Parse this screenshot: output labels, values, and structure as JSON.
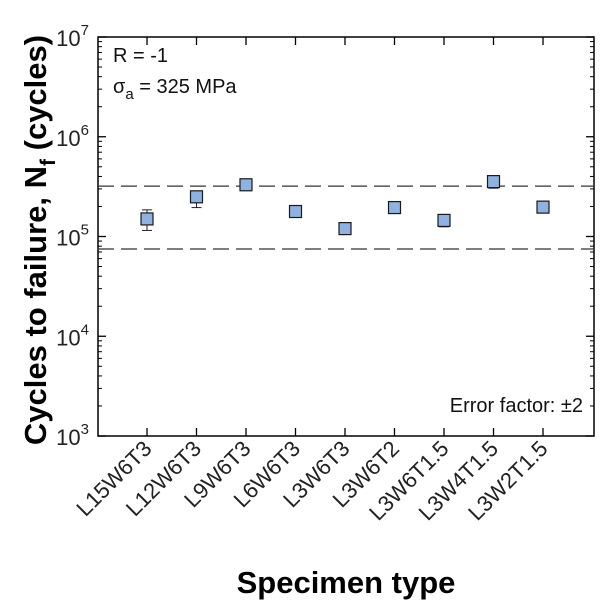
{
  "chart_data": {
    "type": "scatter",
    "ylabel": "Cycles to failure, N",
    "ylabel_sub": "f",
    "ylabel_unit": "(cycles)",
    "xlabel": "Specimen type",
    "yscale": "log",
    "ylim": [
      1000,
      10000000
    ],
    "ytick_labels": [
      {
        "base": "10",
        "exp": "3"
      },
      {
        "base": "10",
        "exp": "4"
      },
      {
        "base": "10",
        "exp": "5"
      },
      {
        "base": "10",
        "exp": "6"
      },
      {
        "base": "10",
        "exp": "7"
      }
    ],
    "categories": [
      "L15W6T3",
      "L12W6T3",
      "L9W6T3",
      "L6W6T3",
      "L3W6T3",
      "L3W6T2",
      "L3W6T1.5",
      "L3W4T1.5",
      "L3W2T1.5"
    ],
    "values": [
      150000,
      250000,
      330000,
      178000,
      120000,
      195000,
      145000,
      355000,
      197000
    ],
    "err_low": [
      115000,
      195000,
      290000,
      165000,
      113000,
      170000,
      125000,
      305000,
      175000
    ],
    "err_high": [
      185000,
      285000,
      340000,
      190000,
      127000,
      215000,
      160000,
      385000,
      205000
    ],
    "reference_lines": [
      320000,
      75000
    ],
    "annotations": {
      "r_ratio": "R = -1",
      "stress_symbol": "σ",
      "stress_sub": "a",
      "stress_value": " = 325 MPa",
      "error_factor": "Error factor: ±2"
    },
    "marker_color": "#8fb2e0",
    "marker_edge": "#1a1a1a"
  }
}
